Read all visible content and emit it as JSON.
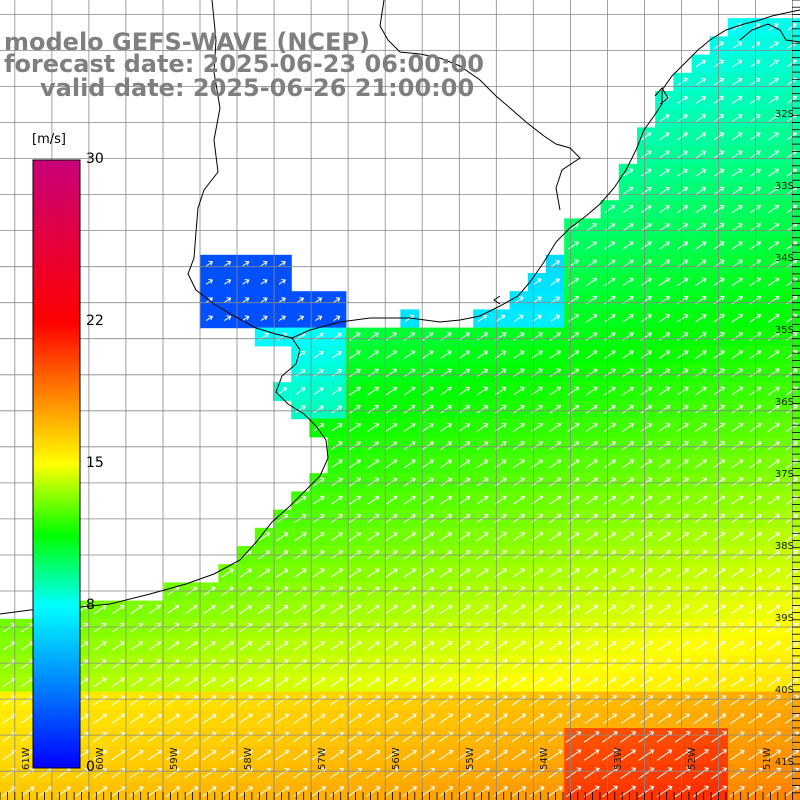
{
  "title": {
    "line1": "modelo GEFS-WAVE (NCEP)",
    "line2": "forecast date: 2025-06-23 06:00:00",
    "line3": "valid date: 2025-06-26 21:00:00"
  },
  "colorbar": {
    "unit": "[m/s]",
    "ticks": [
      "30",
      "22",
      "15",
      "8",
      "0"
    ],
    "tick_values": [
      30,
      22,
      15,
      8,
      0
    ],
    "range": [
      0,
      30
    ],
    "colors": [
      "#0000ff",
      "#00ffff",
      "#00ff00",
      "#ffff00",
      "#ff0000",
      "#c8007a"
    ]
  },
  "axes": {
    "lat_labels": [
      "32S",
      "33S",
      "34S",
      "35S",
      "36S",
      "37S",
      "38S",
      "39S",
      "40S",
      "41S"
    ],
    "lat_values": [
      32,
      33,
      34,
      35,
      36,
      37,
      38,
      39,
      40,
      41
    ],
    "lon_labels": [
      "61W",
      "60W",
      "59W",
      "58W",
      "57W",
      "56W",
      "55W",
      "54W",
      "53W",
      "52W",
      "51W"
    ],
    "lon_values": [
      61,
      60,
      59,
      58,
      57,
      56,
      55,
      54,
      53,
      52,
      51
    ],
    "lat_range": [
      30.3,
      41.4
    ],
    "lon_range": [
      61.2,
      50.4
    ]
  },
  "field": {
    "variable": "wind speed",
    "arrow_direction": "north-east",
    "land_color": "#ffffff",
    "coast_color": "#000000",
    "grid_color": "#888888"
  }
}
